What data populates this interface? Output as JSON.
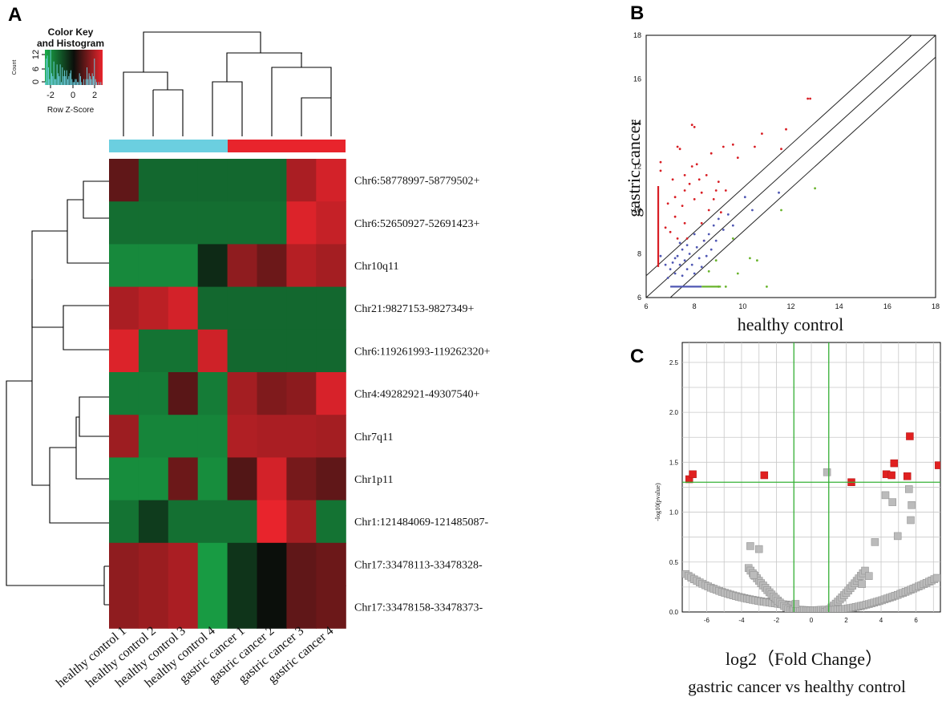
{
  "panels": {
    "a": "A",
    "b": "B",
    "c": "C"
  },
  "colors": {
    "heat_low": "#1aad4a",
    "heat_mid": "#0b0f0b",
    "heat_high": "#e8242c",
    "bar_healthy": "#6bcfe0",
    "bar_gastric": "#e8242c",
    "up": "#d81e24",
    "neutral": "#4f57b3",
    "down": "#69b42c",
    "volcano_sig": "#e02020",
    "volcano_ns": "#bbbbbb",
    "volcano_line": "#36b236",
    "grid": "#c8c8c8"
  },
  "chart_data": [
    {
      "type": "heatmap",
      "panel": "A",
      "color_key": {
        "title_line1": "Color Key",
        "title_line2": "and Histogram",
        "xlabel": "Row Z-Score",
        "ylabel": "Count",
        "xticks": [
          "-2",
          "0",
          "2"
        ],
        "yticks": [
          "0",
          "6",
          "12"
        ],
        "histogram_counts": [
          1,
          9,
          10,
          6,
          2,
          12,
          4,
          3,
          8,
          2,
          2,
          7,
          4,
          3,
          7,
          1,
          6,
          3,
          5,
          3,
          5,
          2,
          3,
          4,
          5,
          2,
          1,
          1,
          2,
          2,
          1,
          1,
          4,
          3,
          1,
          0,
          2,
          0,
          2,
          6,
          2,
          4,
          3,
          2,
          4,
          3,
          9,
          2,
          1,
          0,
          1,
          0,
          1,
          0
        ]
      },
      "samples": [
        "healthy control 1",
        "healthy control 2",
        "healthy control 3",
        "healthy control 4",
        "gastric cancer 1",
        "gastric cancer 2",
        "gastric cancer 3",
        "gastric cancer 4"
      ],
      "sample_group": [
        "healthy",
        "healthy",
        "healthy",
        "healthy",
        "gastric",
        "gastric",
        "gastric",
        "gastric"
      ],
      "rows": [
        "Chr6:58778997-58779502+",
        "Chr6:52650927-52691423+",
        "Chr10q11",
        "Chr21:9827153-9827349+",
        "Chr6:119261993-119262320+",
        "Chr4:49282921-49307540+",
        "Chr7q11",
        "Chr1p11",
        "Chr1:121484069-121485087-",
        "Chr17:33478113-33478328-",
        "Chr17:33478158-33478373-"
      ],
      "zscores": [
        [
          0.3,
          -0.7,
          -0.7,
          -0.7,
          -0.7,
          -0.7,
          1.2,
          2.0
        ],
        [
          -0.8,
          -0.8,
          -0.8,
          -0.8,
          -0.8,
          -0.8,
          2.2,
          1.7
        ],
        [
          -1.4,
          -1.4,
          -1.4,
          -0.05,
          0.8,
          0.4,
          1.4,
          1.1
        ],
        [
          1.2,
          1.5,
          2.0,
          -0.7,
          -0.7,
          -0.7,
          -0.7,
          -0.7
        ],
        [
          2.2,
          -0.9,
          -0.9,
          1.9,
          -0.7,
          -0.7,
          -0.7,
          -0.7
        ],
        [
          -1.1,
          -1.1,
          0.25,
          -1.1,
          1.1,
          0.6,
          0.75,
          2.1
        ],
        [
          1.0,
          -1.3,
          -1.3,
          -1.3,
          1.3,
          1.2,
          1.2,
          1.1
        ],
        [
          -1.5,
          -1.5,
          0.4,
          -1.5,
          0.2,
          2.0,
          0.5,
          0.3
        ],
        [
          -0.9,
          -0.15,
          -0.85,
          -0.85,
          -0.85,
          2.5,
          1.1,
          -0.9
        ],
        [
          0.8,
          0.95,
          1.2,
          -1.9,
          -0.1,
          0.0,
          0.3,
          0.4
        ],
        [
          0.8,
          0.95,
          1.2,
          -1.9,
          -0.1,
          0.0,
          0.3,
          0.4
        ]
      ]
    },
    {
      "type": "scatter",
      "panel": "B",
      "xlabel": "healthy control",
      "ylabel": "gastric cancer",
      "xlim": [
        6,
        18
      ],
      "ylim": [
        6,
        18
      ],
      "ticks": [
        "6",
        "8",
        "10",
        "12",
        "14",
        "16",
        "18"
      ],
      "series": [
        {
          "name": "up",
          "points": [
            [
              6.6,
              11.8
            ],
            [
              6.6,
              12.2
            ],
            [
              6.9,
              10.3
            ],
            [
              7.1,
              11.4
            ],
            [
              7.2,
              10.6
            ],
            [
              7.3,
              12.9
            ],
            [
              7.4,
              12.8
            ],
            [
              7.5,
              10.2
            ],
            [
              7.6,
              11.6
            ],
            [
              7.6,
              10.9
            ],
            [
              7.7,
              8.7
            ],
            [
              7.8,
              11.2
            ],
            [
              7.9,
              12.0
            ],
            [
              7.9,
              13.9
            ],
            [
              8.0,
              13.8
            ],
            [
              8.0,
              10.5
            ],
            [
              8.1,
              12.1
            ],
            [
              8.2,
              11.4
            ],
            [
              8.3,
              10.8
            ],
            [
              8.3,
              9.4
            ],
            [
              8.5,
              11.6
            ],
            [
              8.6,
              10.0
            ],
            [
              8.7,
              12.6
            ],
            [
              8.8,
              10.5
            ],
            [
              9.0,
              11.3
            ],
            [
              9.1,
              9.9
            ],
            [
              9.2,
              12.9
            ],
            [
              9.3,
              10.9
            ],
            [
              9.6,
              13.0
            ],
            [
              9.8,
              12.4
            ],
            [
              10.5,
              12.9
            ],
            [
              10.8,
              13.5
            ],
            [
              11.6,
              12.8
            ],
            [
              11.8,
              13.7
            ],
            [
              12.7,
              15.1
            ],
            [
              12.8,
              15.1
            ],
            [
              7.0,
              9.0
            ],
            [
              7.3,
              8.7
            ],
            [
              7.6,
              9.4
            ],
            [
              8.4,
              8.6
            ],
            [
              6.8,
              9.2
            ],
            [
              7.2,
              9.7
            ],
            [
              8.9,
              10.9
            ]
          ]
        },
        {
          "name": "neutral",
          "points": [
            [
              6.6,
              7.9
            ],
            [
              6.8,
              7.5
            ],
            [
              7.0,
              7.3
            ],
            [
              7.1,
              7.6
            ],
            [
              7.2,
              7.1
            ],
            [
              7.3,
              7.9
            ],
            [
              7.4,
              7.5
            ],
            [
              7.5,
              7.0
            ],
            [
              7.5,
              8.2
            ],
            [
              7.6,
              7.7
            ],
            [
              7.7,
              7.3
            ],
            [
              7.8,
              8.0
            ],
            [
              7.9,
              7.5
            ],
            [
              8.0,
              7.1
            ],
            [
              8.1,
              8.3
            ],
            [
              8.2,
              7.8
            ],
            [
              8.3,
              7.4
            ],
            [
              8.4,
              8.6
            ],
            [
              8.5,
              7.9
            ],
            [
              8.6,
              8.9
            ],
            [
              8.7,
              8.2
            ],
            [
              8.8,
              9.3
            ],
            [
              8.9,
              8.6
            ],
            [
              9.0,
              9.6
            ],
            [
              9.2,
              9.1
            ],
            [
              9.4,
              9.8
            ],
            [
              9.6,
              9.3
            ],
            [
              10.1,
              10.6
            ],
            [
              10.4,
              10.0
            ],
            [
              11.5,
              10.8
            ],
            [
              6.9,
              6.9
            ],
            [
              7.4,
              8.5
            ],
            [
              8.0,
              8.9
            ],
            [
              7.2,
              7.8
            ],
            [
              7.7,
              8.4
            ]
          ]
        },
        {
          "name": "down",
          "points": [
            [
              8.6,
              7.2
            ],
            [
              8.9,
              7.7
            ],
            [
              9.0,
              6.5
            ],
            [
              9.3,
              6.5
            ],
            [
              9.6,
              8.7
            ],
            [
              9.8,
              7.1
            ],
            [
              10.3,
              7.8
            ],
            [
              10.6,
              7.7
            ],
            [
              11.0,
              6.5
            ],
            [
              11.6,
              10.0
            ],
            [
              13.0,
              11.0
            ]
          ]
        }
      ],
      "lines": [
        {
          "intercept": 1.0
        },
        {
          "intercept": 0.0
        },
        {
          "intercept": -1.0
        }
      ],
      "red_column": {
        "x": 6.5,
        "y_from": 7.4,
        "y_to": 11.1
      },
      "blue_row": {
        "y": 6.5,
        "x_from": 7.0,
        "x_to": 8.3
      },
      "green_row": {
        "y": 6.5,
        "x_from": 8.3,
        "x_to": 9.1
      }
    },
    {
      "type": "scatter",
      "panel": "C",
      "xlabel": "log2（Fold Change）",
      "subtitle": "gastric cancer vs healthy control",
      "ylabel": "-log10(pvalue)",
      "xlim": [
        -7.4,
        7.4
      ],
      "ylim": [
        0,
        2.7
      ],
      "xticks": [
        "-6",
        "-4",
        "-2",
        "0",
        "2",
        "4",
        "6"
      ],
      "yticks": [
        "0.0",
        "0.5",
        "1.0",
        "1.5",
        "2.0",
        "2.5"
      ],
      "thresholds": {
        "fc": [
          -1,
          1
        ],
        "p": 1.3
      },
      "significant": [
        [
          -7.0,
          1.33
        ],
        [
          -6.8,
          1.38
        ],
        [
          -2.7,
          1.37
        ],
        [
          2.3,
          1.3
        ],
        [
          4.3,
          1.38
        ],
        [
          4.6,
          1.37
        ],
        [
          4.75,
          1.49
        ],
        [
          5.5,
          1.36
        ],
        [
          5.65,
          1.76
        ],
        [
          7.3,
          1.47
        ]
      ],
      "nonsignificant": [
        [
          0.9,
          1.4
        ],
        [
          4.25,
          1.17
        ],
        [
          4.65,
          1.1
        ],
        [
          5.6,
          1.23
        ],
        [
          5.75,
          1.07
        ],
        [
          5.7,
          0.92
        ],
        [
          4.95,
          0.76
        ],
        [
          3.65,
          0.7
        ],
        [
          -3.5,
          0.66
        ],
        [
          -3.0,
          0.63
        ],
        [
          -3.3,
          0.37
        ],
        [
          -0.9,
          0.08
        ],
        [
          2.9,
          0.28
        ],
        [
          3.3,
          0.36
        ]
      ]
    }
  ]
}
